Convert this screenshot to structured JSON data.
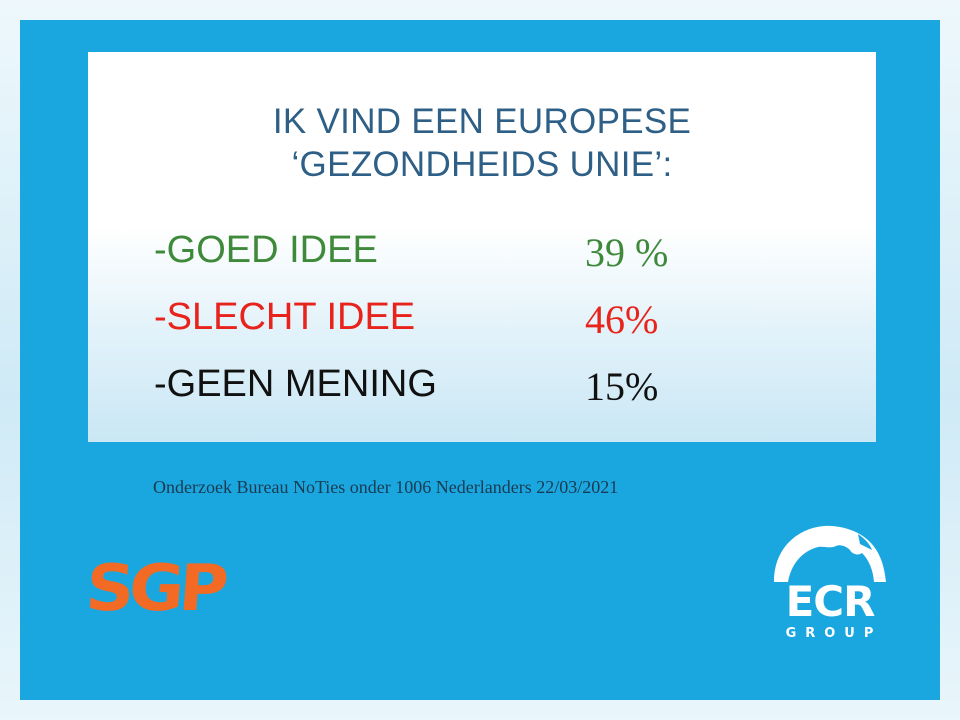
{
  "slide": {
    "title_line1": "IK VIND EEN EUROPESE",
    "title_line2": "‘GEZONDHEIDS UNIE’:",
    "options": [
      {
        "label": "-GOED IDEE",
        "value": "39 %",
        "color": "#3f8a3a"
      },
      {
        "label": "-SLECHT IDEE",
        "value": "46%",
        "color": "#e8231b"
      },
      {
        "label": "-GEEN MENING",
        "value": "15%",
        "color": "#111111"
      }
    ],
    "source": "Onderzoek Bureau NoTies onder 1006 Nederlanders 22/03/2021"
  },
  "logos": {
    "sgp": {
      "text": "SGP",
      "color": "#f26a23"
    },
    "ecr": {
      "text": "ECR",
      "subtext": "GROUP",
      "icon": "ecr-arch-logo-icon"
    }
  },
  "colors": {
    "frame": "#1aa7df",
    "title": "#2e5f86"
  }
}
